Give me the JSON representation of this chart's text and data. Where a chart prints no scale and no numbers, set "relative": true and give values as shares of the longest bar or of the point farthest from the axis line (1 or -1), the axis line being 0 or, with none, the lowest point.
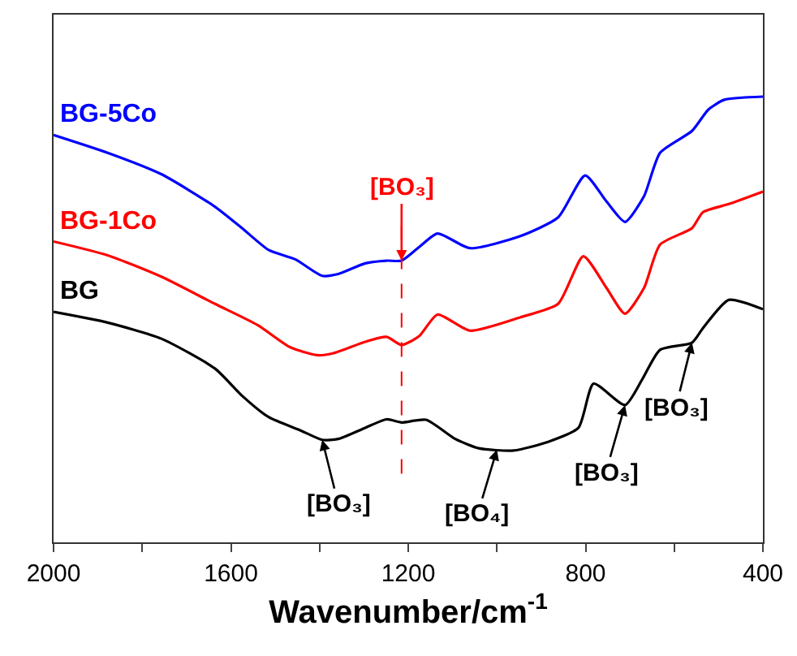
{
  "chart_data": {
    "type": "line",
    "relative": true,
    "xlabel": "Wavenumber/cm$^{-1}$",
    "xlim": [
      2000,
      400
    ],
    "xticks": [
      2000,
      {
        "value": 1800,
        "label": null
      },
      1600,
      {
        "value": 1400,
        "label": null
      },
      1200,
      {
        "value": 1000,
        "label": null
      },
      800,
      {
        "value": 600,
        "label": null
      },
      400
    ],
    "tick_labels": "x",
    "legend": false,
    "series": [
      {
        "name": "BG-5Co",
        "color": "#0000ff",
        "x": [
          2000,
          1878,
          1757,
          1636,
          1575,
          1515,
          1455,
          1394,
          1358,
          1297,
          1249,
          1215,
          1176,
          1134,
          1061,
          947,
          862,
          801,
          753,
          711,
          668,
          632,
          560,
          523,
          487,
          400
        ],
        "values": [
          0.914,
          0.874,
          0.826,
          0.753,
          0.705,
          0.656,
          0.635,
          0.598,
          0.602,
          0.626,
          0.632,
          0.632,
          0.662,
          0.693,
          0.66,
          0.687,
          0.729,
          0.823,
          0.765,
          0.719,
          0.777,
          0.874,
          0.923,
          0.971,
          0.993,
          1.0
        ]
      },
      {
        "name": "BG-1Co",
        "color": "#ff0000",
        "x": [
          2000,
          1878,
          1757,
          1636,
          1539,
          1467,
          1406,
          1370,
          1297,
          1249,
          1215,
          1176,
          1134,
          1061,
          947,
          862,
          805,
          753,
          711,
          668,
          632,
          560,
          535,
          477,
          400
        ],
        "values": [
          0.675,
          0.644,
          0.596,
          0.535,
          0.487,
          0.438,
          0.42,
          0.424,
          0.45,
          0.461,
          0.443,
          0.462,
          0.511,
          0.475,
          0.505,
          0.535,
          0.642,
          0.571,
          0.513,
          0.571,
          0.668,
          0.705,
          0.741,
          0.759,
          0.787
        ]
      },
      {
        "name": "BG",
        "color": "#000000",
        "x": [
          2000,
          1878,
          1757,
          1636,
          1575,
          1515,
          1443,
          1394,
          1358,
          1297,
          1249,
          1215,
          1160,
          1094,
          1041,
          962,
          883,
          816,
          782,
          711,
          672,
          632,
          560,
          535,
          477,
          400
        ],
        "values": [
          0.517,
          0.493,
          0.457,
          0.39,
          0.329,
          0.281,
          0.251,
          0.23,
          0.232,
          0.257,
          0.276,
          0.269,
          0.275,
          0.232,
          0.211,
          0.206,
          0.226,
          0.257,
          0.356,
          0.308,
          0.366,
          0.432,
          0.448,
          0.481,
          0.544,
          0.523
        ]
      }
    ],
    "ref_lines": [
      {
        "axis": "x",
        "value": 1215,
        "color": "#ff0000",
        "line_style": "dashed"
      }
    ],
    "annotations": [
      {
        "text": "[BO₃]",
        "x": 1215,
        "y": 0.632
      },
      {
        "text": "[BO₃]",
        "x": 1394,
        "y": 0.23
      },
      {
        "text": "[BO₄]",
        "x": 1000,
        "y": 0.208
      },
      {
        "text": "[BO₃]",
        "x": 711,
        "y": 0.308
      },
      {
        "text": "[BO₃]",
        "x": 560,
        "y": 0.448
      }
    ]
  }
}
